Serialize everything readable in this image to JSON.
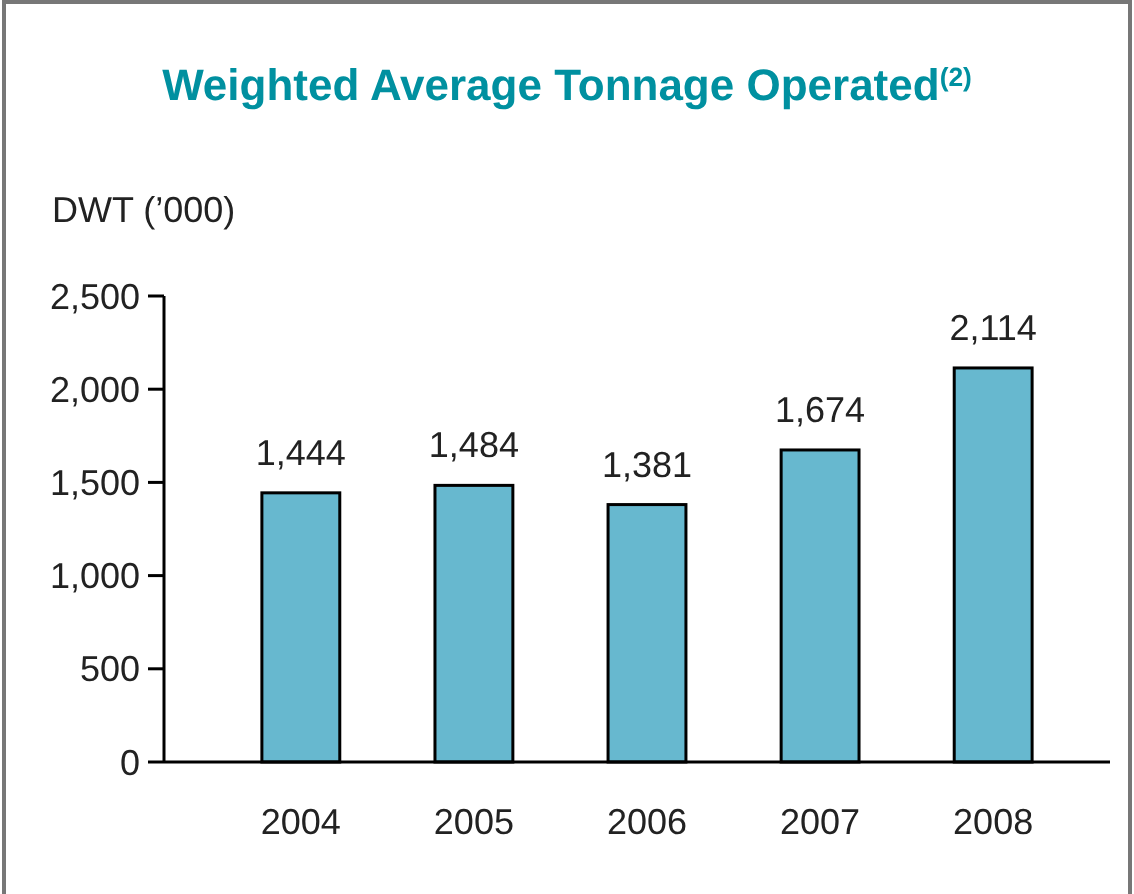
{
  "chart_data": {
    "type": "bar",
    "title": "Weighted Average Tonnage Operated$^{(2)}$",
    "ylabel": "DWT (’000)",
    "categories": [
      "2004",
      "2005",
      "2006",
      "2007",
      "2008"
    ],
    "values": [
      1444,
      1484,
      1381,
      1674,
      2114
    ],
    "color": "#67b8cf",
    "ylim": [
      0,
      2500
    ],
    "yticks": [
      {
        "value": 0,
        "label": "0"
      },
      {
        "value": 500,
        "label": "500"
      },
      {
        "value": 1000,
        "label": "1,000"
      },
      {
        "value": 1500,
        "label": "1,500"
      },
      {
        "value": 2000,
        "label": "2,000"
      },
      {
        "value": 2500,
        "label": "2,500"
      }
    ],
    "value_labels": [
      "1,444",
      "1,484",
      "1,381",
      "1,674",
      "2,114"
    ],
    "grid": false
  }
}
